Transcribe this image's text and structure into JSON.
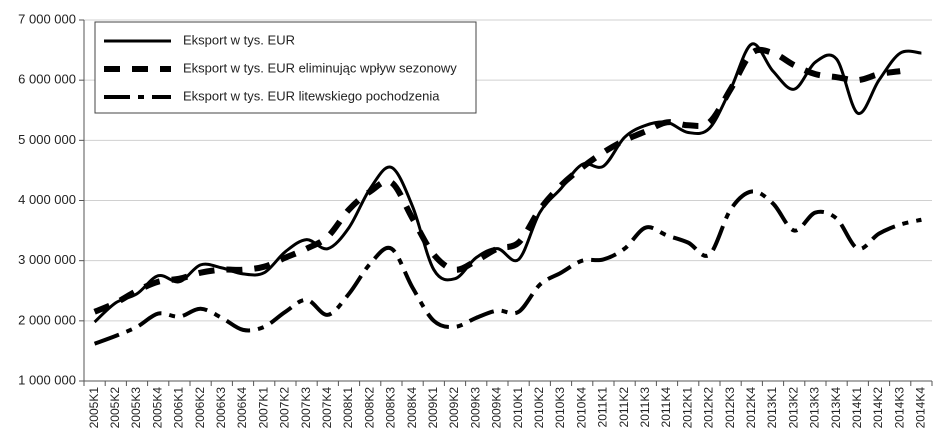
{
  "chart_data": {
    "type": "line",
    "categories": [
      "2005K1",
      "2005K2",
      "2005K3",
      "2005K4",
      "2006K1",
      "2006K2",
      "2006K3",
      "2006K4",
      "2007K1",
      "2007K2",
      "2007K3",
      "2007K4",
      "2008K1",
      "2008K2",
      "2008K3",
      "2008K4",
      "2009K1",
      "2009K2",
      "2009K3",
      "2009K4",
      "2010K1",
      "2010K2",
      "2010K3",
      "2010K4",
      "2011K1",
      "2011K2",
      "2011K3",
      "2011K4",
      "2012K1",
      "2012K2",
      "2012K3",
      "2012K4",
      "2013K1",
      "2013K2",
      "2013K3",
      "2013K4",
      "2014K1",
      "2014K2",
      "2014K3",
      "2014K4"
    ],
    "series": [
      {
        "name": "Eksport w tys. EUR",
        "color": "#000000",
        "line_style": "solid",
        "values": [
          1980000,
          2300000,
          2450000,
          2750000,
          2650000,
          2930000,
          2880000,
          2780000,
          2800000,
          3150000,
          3350000,
          3200000,
          3550000,
          4200000,
          4550000,
          3900000,
          2850000,
          2700000,
          3050000,
          3200000,
          3020000,
          3800000,
          4200000,
          4600000,
          4570000,
          5050000,
          5250000,
          5300000,
          5130000,
          5200000,
          5850000,
          6600000,
          6150000,
          5850000,
          6300000,
          6350000,
          5450000,
          6000000,
          6450000,
          6450000
        ]
      },
      {
        "name": "Eksport w tys. EUR eliminując wpływ sezonowy",
        "color": "#000000",
        "line_style": "dashed",
        "values": [
          2150000,
          2300000,
          2500000,
          2650000,
          2700000,
          2800000,
          2850000,
          2850000,
          2900000,
          3050000,
          3200000,
          3400000,
          3850000,
          4150000,
          4300000,
          3700000,
          3100000,
          2850000,
          3000000,
          3200000,
          3300000,
          3850000,
          4250000,
          4550000,
          4800000,
          5000000,
          5150000,
          5300000,
          5250000,
          5300000,
          5850000,
          6450000,
          6450000,
          6250000,
          6100000,
          6050000,
          6000000,
          6100000,
          6150000,
          null
        ]
      },
      {
        "name": "Eksport w tys. EUR litewskiego pochodzenia",
        "color": "#000000",
        "line_style": "dashdot",
        "values": [
          1620000,
          1750000,
          1900000,
          2120000,
          2070000,
          2200000,
          2050000,
          1850000,
          1900000,
          2150000,
          2350000,
          2100000,
          2450000,
          2950000,
          3200000,
          2550000,
          2000000,
          1900000,
          2050000,
          2170000,
          2150000,
          2600000,
          2800000,
          3000000,
          3020000,
          3200000,
          3550000,
          3420000,
          3300000,
          3100000,
          3850000,
          4150000,
          3950000,
          3500000,
          3800000,
          3700000,
          3200000,
          3450000,
          3600000,
          3680000
        ]
      }
    ],
    "ylim": [
      1000000,
      7000000
    ],
    "yticks": [
      {
        "value": 1000000,
        "label": "1 000 000"
      },
      {
        "value": 2000000,
        "label": "2 000 000"
      },
      {
        "value": 3000000,
        "label": "3 000 000"
      },
      {
        "value": 4000000,
        "label": "4 000 000"
      },
      {
        "value": 5000000,
        "label": "5 000 000"
      },
      {
        "value": 6000000,
        "label": "6 000 000"
      },
      {
        "value": 7000000,
        "label": "7 000 000"
      }
    ],
    "grid": true,
    "legend": "upper left"
  }
}
